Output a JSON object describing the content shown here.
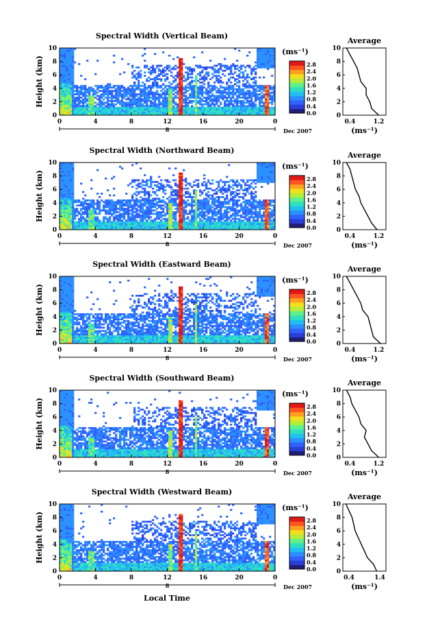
{
  "figure": {
    "xlabel": "Local Time",
    "colormap": [
      "#1f1f7a",
      "#2b3fd6",
      "#2f62ff",
      "#2c90ff",
      "#22c0f0",
      "#2fe0c0",
      "#5ef08a",
      "#b5ee3a",
      "#f0e020",
      "#ffa020",
      "#ff5520",
      "#e01818"
    ]
  },
  "chart_data": [
    {
      "type": "heatmap",
      "title": "Spectral Width (Vertical Beam)",
      "ylabel": "Height (km)",
      "ylim": [
        0,
        10
      ],
      "yticks": [
        "10",
        "8",
        "6",
        "4",
        "2",
        "0"
      ],
      "xlim": [
        0,
        24
      ],
      "xticks": [
        "0",
        "4",
        "8",
        "12",
        "16",
        "20",
        "0"
      ],
      "date_marker": "8",
      "date_label": "Dec 2007",
      "colorbar": {
        "unit": "(ms⁻¹)",
        "ticks": [
          "2.8",
          "2.4",
          "2.0",
          "1.6",
          "1.2",
          "0.8",
          "0.4",
          "0.0"
        ],
        "range": [
          0,
          3
        ]
      },
      "average": {
        "title": "Average",
        "xlabel": "(ms⁻¹)",
        "xticks": [
          "0.4",
          "1.2"
        ],
        "xlim": [
          0.2,
          1.4
        ],
        "height": [
          0,
          1,
          2,
          3,
          4,
          5,
          6,
          7,
          8,
          9,
          10
        ],
        "value": [
          1.2,
          1.0,
          0.95,
          0.85,
          0.85,
          0.7,
          0.65,
          0.6,
          0.5,
          0.4,
          0.3
        ]
      }
    },
    {
      "type": "heatmap",
      "title": "Spectral Width (Northward Beam)",
      "ylabel": "Height (km)",
      "ylim": [
        0,
        10
      ],
      "yticks": [
        "10",
        "8",
        "6",
        "4",
        "2",
        "0"
      ],
      "xlim": [
        0,
        24
      ],
      "xticks": [
        "0",
        "4",
        "8",
        "12",
        "16",
        "20",
        "0"
      ],
      "date_marker": "8",
      "date_label": "Dec 2007",
      "colorbar": {
        "unit": "(ms⁻¹)",
        "ticks": [
          "2.8",
          "2.4",
          "2.0",
          "1.6",
          "1.2",
          "0.8",
          "0.4",
          "0.0"
        ],
        "range": [
          0,
          3
        ]
      },
      "average": {
        "title": "Average",
        "xlabel": "(ms⁻¹)",
        "xticks": [
          "0.4",
          "1.2"
        ],
        "xlim": [
          0.2,
          1.4
        ],
        "height": [
          0,
          1,
          2,
          3,
          4,
          5,
          6,
          7,
          8,
          9,
          10
        ],
        "value": [
          1.15,
          1.0,
          0.9,
          0.8,
          0.7,
          0.65,
          0.55,
          0.5,
          0.45,
          0.4,
          0.3
        ]
      }
    },
    {
      "type": "heatmap",
      "title": "Spectral Width (Eastward Beam)",
      "ylabel": "Height (km)",
      "ylim": [
        0,
        10
      ],
      "yticks": [
        "10",
        "8",
        "6",
        "4",
        "2",
        "0"
      ],
      "xlim": [
        0,
        24
      ],
      "xticks": [
        "0",
        "4",
        "8",
        "12",
        "16",
        "20",
        "0"
      ],
      "date_marker": "8",
      "date_label": "Dec 2007",
      "colorbar": {
        "unit": "(ms⁻¹)",
        "ticks": [
          "2.8",
          "2.4",
          "2.0",
          "1.6",
          "1.2",
          "0.8",
          "0.4",
          "0.0"
        ],
        "range": [
          0,
          3
        ]
      },
      "average": {
        "title": "Average",
        "xlabel": "(ms⁻¹)",
        "xticks": [
          "0.4",
          "1.2"
        ],
        "xlim": [
          0.2,
          1.4
        ],
        "height": [
          0,
          1,
          2,
          3,
          4,
          5,
          6,
          7,
          8,
          9,
          10
        ],
        "value": [
          1.25,
          1.05,
          1.0,
          0.95,
          0.9,
          0.75,
          0.7,
          0.6,
          0.5,
          0.4,
          0.3
        ]
      }
    },
    {
      "type": "heatmap",
      "title": "Spectral Width (Southward Beam)",
      "ylabel": "Height (km)",
      "ylim": [
        0,
        10
      ],
      "yticks": [
        "10",
        "8",
        "6",
        "4",
        "2",
        "0"
      ],
      "xlim": [
        0,
        24
      ],
      "xticks": [
        "0",
        "4",
        "8",
        "12",
        "16",
        "20",
        "0"
      ],
      "date_marker": "8",
      "date_label": "Dec 2007",
      "colorbar": {
        "unit": "(ms⁻¹)",
        "ticks": [
          "2.8",
          "2.4",
          "2.0",
          "1.6",
          "1.2",
          "0.8",
          "0.4",
          "0.0"
        ],
        "range": [
          0,
          3
        ]
      },
      "average": {
        "title": "Average",
        "xlabel": "(ms⁻¹)",
        "xticks": [
          "0.4",
          "1.2"
        ],
        "xlim": [
          0.2,
          1.4
        ],
        "height": [
          0,
          1,
          2,
          3,
          4,
          5,
          6,
          7,
          8,
          9,
          10
        ],
        "value": [
          1.2,
          1.0,
          0.9,
          0.8,
          0.85,
          0.7,
          0.65,
          0.55,
          0.45,
          0.4,
          0.3
        ]
      }
    },
    {
      "type": "heatmap",
      "title": "Spectral Width (Westward Beam)",
      "ylabel": "Height (km)",
      "ylim": [
        0,
        10
      ],
      "yticks": [
        "10",
        "8",
        "6",
        "4",
        "2",
        "0"
      ],
      "xlim": [
        0,
        24
      ],
      "xticks": [
        "0",
        "4",
        "8",
        "12",
        "16",
        "20",
        "0"
      ],
      "date_marker": "8",
      "date_label": "Dec 2007",
      "colorbar": {
        "unit": "(ms⁻¹)",
        "ticks": [
          "2.8",
          "2.4",
          "2.0",
          "1.6",
          "1.2",
          "0.8",
          "0.4",
          "0.0"
        ],
        "range": [
          0,
          3
        ]
      },
      "average": {
        "title": "Average",
        "xlabel": "(ms⁻¹)",
        "xticks": [
          "0.4",
          "1.4"
        ],
        "xlim": [
          0.2,
          1.6
        ],
        "height": [
          0,
          1,
          2,
          3,
          4,
          5,
          6,
          7,
          8,
          9,
          10
        ],
        "value": [
          1.3,
          1.2,
          1.0,
          0.9,
          0.8,
          0.7,
          0.6,
          0.55,
          0.5,
          0.4,
          0.3
        ]
      }
    }
  ]
}
